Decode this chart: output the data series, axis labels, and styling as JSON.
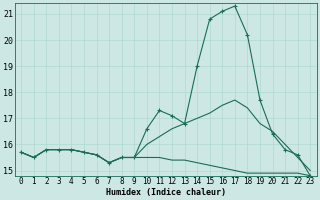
{
  "title": "",
  "xlabel": "Humidex (Indice chaleur)",
  "ylabel": "",
  "background_color": "#cde8e4",
  "grid_color": "#b0d8d0",
  "line_color": "#1a6b5a",
  "xlim": [
    -0.5,
    23.5
  ],
  "ylim": [
    14.8,
    21.4
  ],
  "xticks": [
    0,
    1,
    2,
    3,
    4,
    5,
    6,
    7,
    8,
    9,
    10,
    11,
    12,
    13,
    14,
    15,
    16,
    17,
    18,
    19,
    20,
    21,
    22,
    23
  ],
  "yticks": [
    15,
    16,
    17,
    18,
    19,
    20,
    21
  ],
  "series": [
    [
      15.7,
      15.5,
      15.8,
      15.8,
      15.8,
      15.7,
      15.6,
      15.3,
      15.5,
      15.5,
      16.6,
      17.3,
      17.1,
      16.8,
      19.0,
      20.8,
      21.1,
      21.3,
      20.2,
      17.7,
      16.4,
      15.8,
      15.6,
      14.8
    ],
    [
      15.7,
      15.5,
      15.8,
      15.8,
      15.8,
      15.7,
      15.6,
      15.3,
      15.5,
      15.5,
      16.0,
      16.3,
      16.6,
      16.8,
      17.0,
      17.2,
      17.5,
      17.7,
      17.4,
      16.8,
      16.5,
      16.0,
      15.5,
      15.0
    ],
    [
      15.7,
      15.5,
      15.8,
      15.8,
      15.8,
      15.7,
      15.6,
      15.3,
      15.5,
      15.5,
      15.5,
      15.5,
      15.4,
      15.4,
      15.3,
      15.2,
      15.1,
      15.0,
      14.9,
      14.9,
      14.9,
      14.9,
      14.9,
      14.8
    ]
  ],
  "xlabel_fontsize": 6.0,
  "tick_fontsize": 5.5
}
